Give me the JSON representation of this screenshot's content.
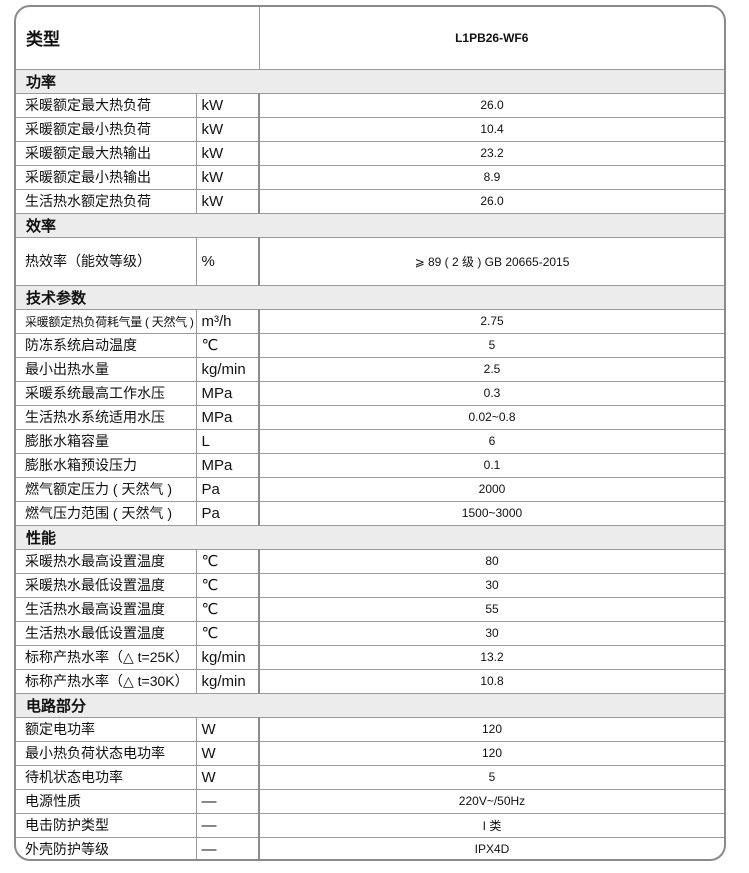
{
  "header": {
    "type_label": "类型",
    "model": "L1PB26-WF6"
  },
  "sections": [
    {
      "title": "功率",
      "rows": [
        {
          "label": "采暖额定最大热负荷",
          "unit": "kW",
          "value": "26.0"
        },
        {
          "label": "采暖额定最小热负荷",
          "unit": "kW",
          "value": "10.4"
        },
        {
          "label": "采暖额定最大热输出",
          "unit": "kW",
          "value": "23.2"
        },
        {
          "label": "采暖额定最小热输出",
          "unit": "kW",
          "value": "8.9"
        },
        {
          "label": "生活热水额定热负荷",
          "unit": "kW",
          "value": "26.0"
        }
      ]
    },
    {
      "title": "效率",
      "rows": [
        {
          "label": "热效率（能效等级）",
          "unit": "%",
          "value": "⩾ 89 ( 2 级 ) GB 20665-2015",
          "tall": true
        }
      ]
    },
    {
      "title": "技术参数",
      "rows": [
        {
          "label": "采暖额定热负荷耗气量 ( 天然气 )",
          "unit": "m³/h",
          "value": "2.75",
          "small": true
        },
        {
          "label": "防冻系统启动温度",
          "unit": "℃",
          "value": "5"
        },
        {
          "label": "最小出热水量",
          "unit": "kg/min",
          "value": "2.5"
        },
        {
          "label": "采暖系统最高工作水压",
          "unit": "MPa",
          "value": "0.3"
        },
        {
          "label": "生活热水系统适用水压",
          "unit": "MPa",
          "value": "0.02~0.8"
        },
        {
          "label": "膨胀水箱容量",
          "unit": "L",
          "value": "6"
        },
        {
          "label": "膨胀水箱预设压力",
          "unit": "MPa",
          "value": "0.1"
        },
        {
          "label": "燃气额定压力 ( 天然气 )",
          "unit": "Pa",
          "value": "2000"
        },
        {
          "label": "燃气压力范围 ( 天然气 )",
          "unit": "Pa",
          "value": "1500~3000"
        }
      ]
    },
    {
      "title": "性能",
      "rows": [
        {
          "label": "采暖热水最高设置温度",
          "unit": "℃",
          "value": "80"
        },
        {
          "label": "采暖热水最低设置温度",
          "unit": "℃",
          "value": "30"
        },
        {
          "label": "生活热水最高设置温度",
          "unit": "℃",
          "value": "55"
        },
        {
          "label": "生活热水最低设置温度",
          "unit": "℃",
          "value": "30"
        },
        {
          "label": "标称产热水率（△ t=25K）",
          "unit": "kg/min",
          "value": "13.2"
        },
        {
          "label": "标称产热水率（△ t=30K）",
          "unit": "kg/min",
          "value": "10.8"
        }
      ]
    },
    {
      "title": "电路部分",
      "rows": [
        {
          "label": "额定电功率",
          "unit": "W",
          "value": "120"
        },
        {
          "label": "最小热负荷状态电功率",
          "unit": "W",
          "value": "120"
        },
        {
          "label": "待机状态电功率",
          "unit": "W",
          "value": "5"
        },
        {
          "label": "电源性质",
          "unit": "—",
          "value": "220V~/50Hz"
        },
        {
          "label": "电击防护类型",
          "unit": "—",
          "value": "I 类"
        },
        {
          "label": "外壳防护等级",
          "unit": "—",
          "value": "IPX4D"
        }
      ]
    }
  ]
}
